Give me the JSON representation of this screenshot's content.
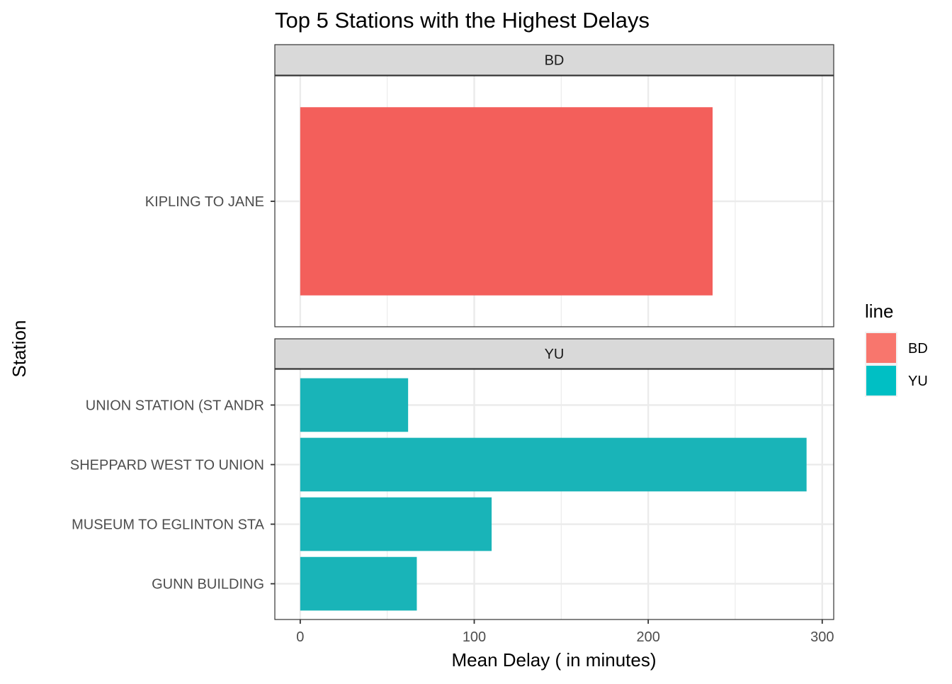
{
  "chart_data": {
    "type": "bar",
    "orientation": "horizontal",
    "title": "Top 5 Stations with the Highest Delays",
    "xlabel": "Mean Delay ( in minutes)",
    "ylabel": "Station",
    "xlim": [
      -14.6,
      306.6
    ],
    "x_ticks": [
      0,
      100,
      200,
      300
    ],
    "x_tick_labels": [
      "0",
      "100",
      "200",
      "300"
    ],
    "grid": true,
    "legend": {
      "title": "line",
      "position": "right",
      "entries": [
        {
          "label": "BD",
          "color": "#F8766D"
        },
        {
          "label": "YU",
          "color": "#00BFC4"
        }
      ]
    },
    "facets": [
      {
        "label": "BD",
        "color": "#F35F5B",
        "categories": [
          "KIPLING TO JANE"
        ],
        "values": [
          237
        ]
      },
      {
        "label": "YU",
        "color": "#19B4B8",
        "categories": [
          "UNION STATION (ST ANDR",
          "SHEPPARD WEST TO UNION",
          "MUSEUM TO EGLINTON STA",
          "GUNN BUILDING"
        ],
        "values": [
          62,
          291,
          110,
          67
        ]
      }
    ]
  }
}
